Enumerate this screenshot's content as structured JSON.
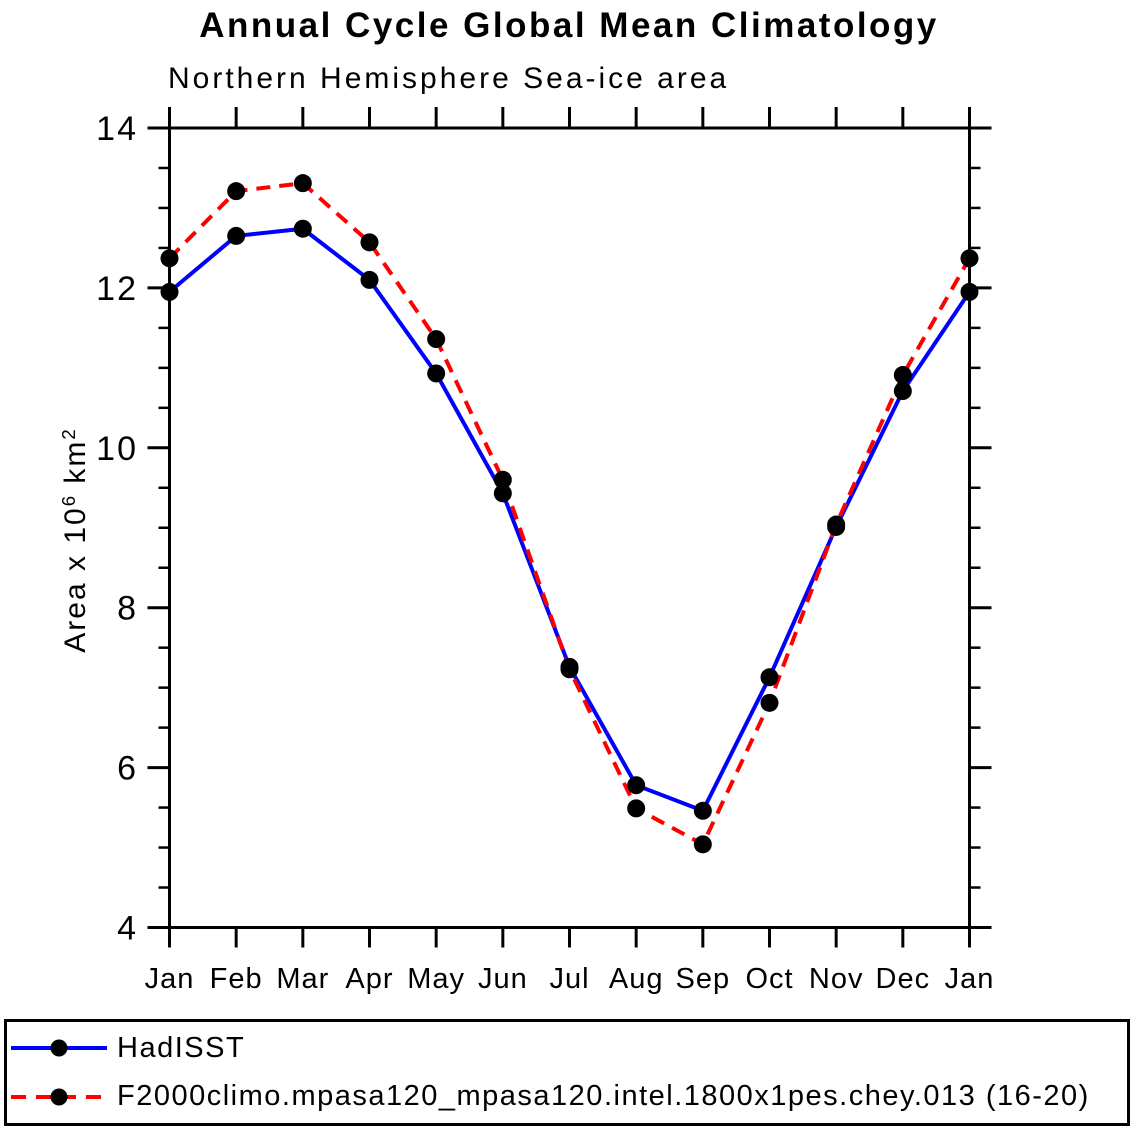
{
  "title": "Annual Cycle Global Mean Climatology",
  "subtitle": "Northern Hemisphere Sea-ice area",
  "colors": {
    "hadisst_line": "#0000ff",
    "model_line": "#ff0000",
    "marker": "#000000",
    "axis": "#000000",
    "background": "#ffffff"
  },
  "chart_data": {
    "type": "line",
    "title": "Annual Cycle Global Mean Climatology",
    "subtitle": "Northern Hemisphere Sea-ice area",
    "xlabel": "",
    "ylabel": "Area x 10^6 km^2",
    "ylabel_rich": [
      {
        "text": "Area x 10",
        "sup": false
      },
      {
        "text": "6",
        "sup": true
      },
      {
        "text": " km",
        "sup": false
      },
      {
        "text": "2",
        "sup": true
      }
    ],
    "x_categories": [
      "Jan",
      "Feb",
      "Mar",
      "Apr",
      "May",
      "Jun",
      "Jul",
      "Aug",
      "Sep",
      "Oct",
      "Nov",
      "Dec",
      "Jan"
    ],
    "ylim": [
      4,
      14
    ],
    "y_major_ticks": [
      4,
      6,
      8,
      10,
      12,
      14
    ],
    "y_minor_tick_step": 0.5,
    "grid": false,
    "legend_position": "bottom",
    "marker": "filled-circle",
    "marker_color": "#000000",
    "series": [
      {
        "name": "HadISST",
        "color": "#0000ff",
        "line_style": "solid",
        "values": [
          11.95,
          12.65,
          12.74,
          12.1,
          10.93,
          9.43,
          7.26,
          5.78,
          5.46,
          7.13,
          9.01,
          10.71,
          11.95
        ]
      },
      {
        "name": "F2000climo.mpasa120_mpasa120.intel.1800x1pes.chey.013 (16-20)",
        "color": "#ff0000",
        "line_style": "dashed",
        "values": [
          12.37,
          13.21,
          13.31,
          12.57,
          11.36,
          9.6,
          7.23,
          5.49,
          5.04,
          6.81,
          9.04,
          10.91,
          12.37
        ]
      }
    ]
  }
}
